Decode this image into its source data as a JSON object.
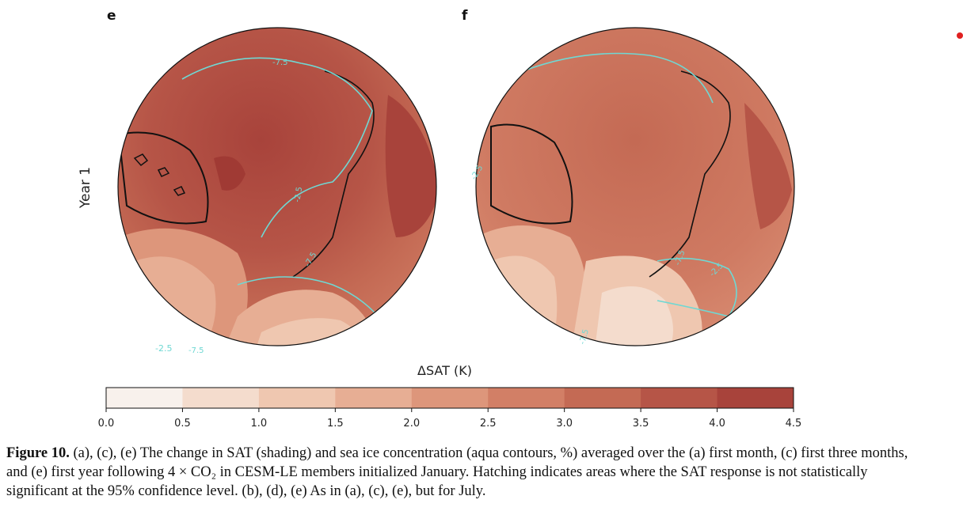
{
  "panels": [
    {
      "label": "e"
    },
    {
      "label": "f"
    }
  ],
  "row_label": "Year 1",
  "contour_labels": [
    "-7.5",
    "-2.5",
    "-7.5",
    "-2.5",
    "-7.5",
    "-2.5",
    "-7.5",
    "-2.5",
    "-7.5"
  ],
  "colorbar": {
    "title": "ΔSAT (K)",
    "ticks": [
      "0.0",
      "0.5",
      "1.0",
      "1.5",
      "2.0",
      "2.5",
      "3.0",
      "3.5",
      "4.0",
      "4.5"
    ],
    "colors": [
      "#f8f1ec",
      "#f4dccd",
      "#efc7b0",
      "#e7ae94",
      "#dd967b",
      "#d27f66",
      "#c46a54",
      "#b65547",
      "#a8433b"
    ]
  },
  "caption": {
    "lead": "Figure 10.",
    "text": " (a), (c), (e) The change in SAT (shading) and sea ice concentration (aqua contours, %) averaged over the (a) first month, (c) first three months, and (e) first year following 4 × CO₂ in CESM-LE members initialized January. Hatching indicates areas where the SAT response is not statistically significant at the 95% confidence level. (b), (d), (e) As in (a), (c), (e), but for July."
  }
}
